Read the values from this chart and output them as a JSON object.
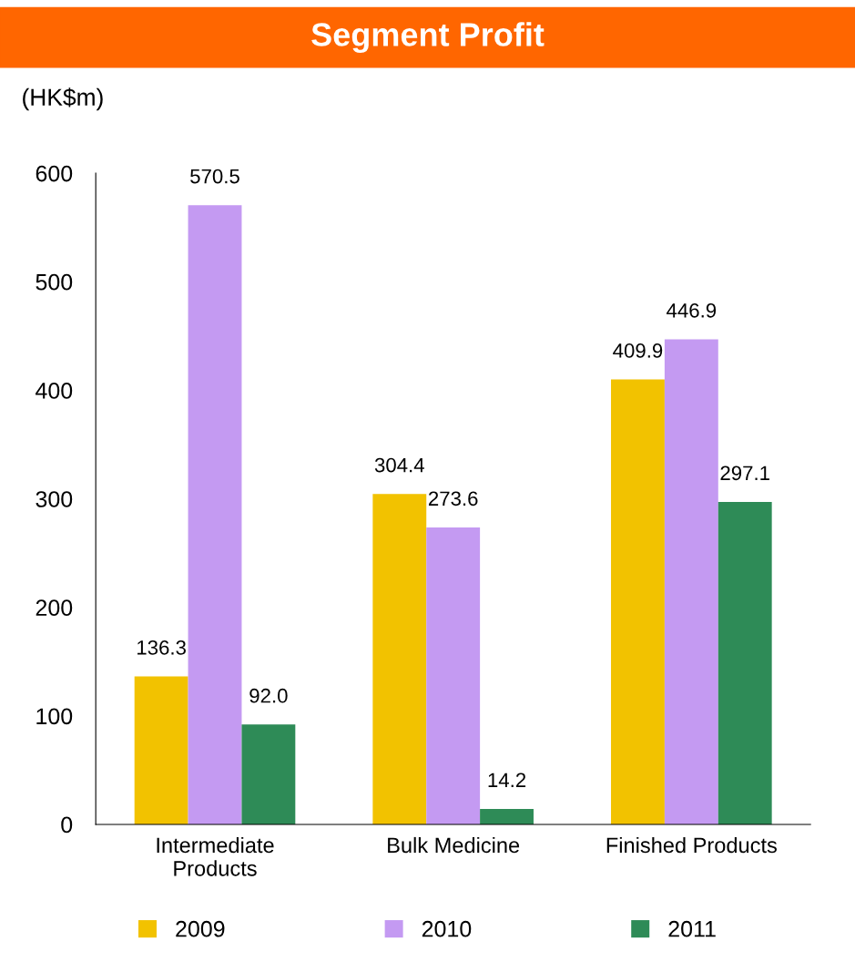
{
  "chart_data": {
    "type": "bar",
    "title": "Segment Profit",
    "ylabel": "(HK$m)",
    "categories": [
      "Intermediate\nProducts",
      "Bulk Medicine",
      "Finished Products"
    ],
    "series": [
      {
        "name": "2009",
        "color": "#f2c200",
        "values": [
          136.3,
          304.4,
          409.9
        ],
        "value_labels": [
          "136.3",
          "304.4",
          "409.9"
        ]
      },
      {
        "name": "2010",
        "color": "#c49af2",
        "values": [
          570.5,
          273.6,
          446.9
        ],
        "value_labels": [
          "570.5",
          "273.6",
          "446.9"
        ]
      },
      {
        "name": "2011",
        "color": "#2e8b57",
        "values": [
          92.0,
          14.2,
          297.1
        ],
        "value_labels": [
          "92.0",
          "14.2",
          "297.1"
        ]
      }
    ],
    "ylim": [
      0,
      600
    ],
    "yticks": [
      0,
      100,
      200,
      300,
      400,
      500,
      600
    ],
    "grid": false,
    "legend": "bottom"
  }
}
